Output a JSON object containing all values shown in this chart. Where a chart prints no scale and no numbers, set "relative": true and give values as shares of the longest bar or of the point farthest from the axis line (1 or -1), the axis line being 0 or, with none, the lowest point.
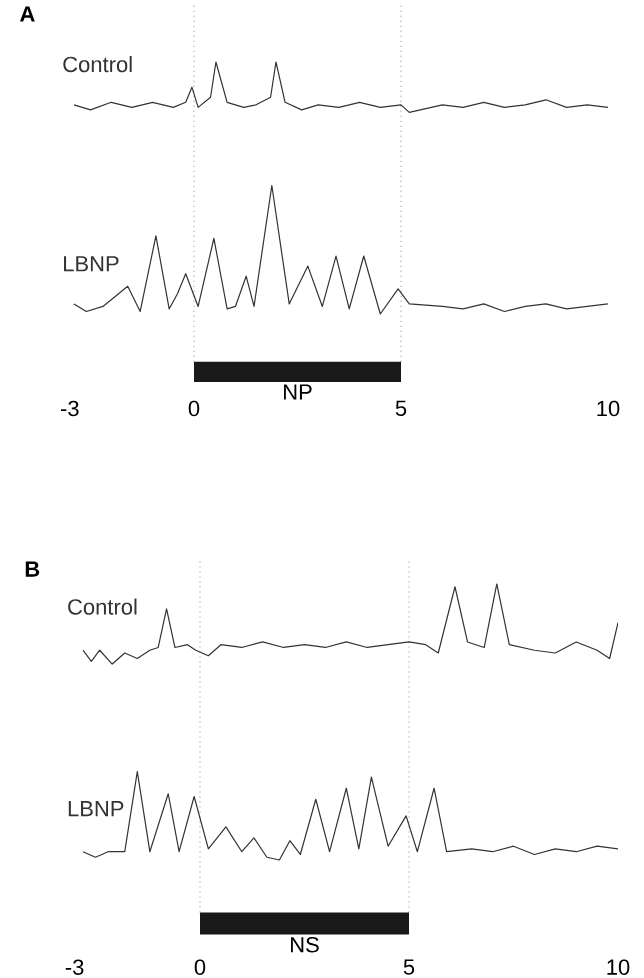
{
  "chart_data": [
    {
      "type": "line",
      "title": "A",
      "relative": true,
      "xlim": [
        -3,
        10
      ],
      "xticks": [
        -3,
        0,
        5,
        10
      ],
      "marker": "none",
      "line_style": "solid",
      "series": [
        {
          "name": "Control",
          "color": "#333333",
          "x": [
            -2.9,
            -2.5,
            -2,
            -1.5,
            -1,
            -0.5,
            -0.2,
            -0.05,
            0.1,
            0.4,
            0.53,
            0.8,
            1.2,
            1.5,
            1.85,
            1.98,
            2.2,
            2.6,
            3,
            3.5,
            4,
            4.5,
            5,
            5.2,
            6,
            6.5,
            7,
            7.5,
            8,
            8.5,
            9,
            9.5,
            10
          ],
          "values": [
            0.83,
            0.81,
            0.84,
            0.82,
            0.84,
            0.82,
            0.84,
            0.9,
            0.82,
            0.86,
            1.0,
            0.84,
            0.82,
            0.83,
            0.86,
            1.0,
            0.84,
            0.81,
            0.83,
            0.82,
            0.84,
            0.82,
            0.83,
            0.8,
            0.83,
            0.82,
            0.84,
            0.82,
            0.83,
            0.85,
            0.82,
            0.83,
            0.82
          ]
        },
        {
          "name": "LBNP",
          "color": "#333333",
          "x": [
            -2.9,
            -2.6,
            -2.2,
            -1.6,
            -1.3,
            -0.92,
            -0.6,
            -0.4,
            -0.2,
            0.1,
            0.48,
            0.8,
            1.0,
            1.26,
            1.45,
            1.88,
            2.3,
            2.75,
            3.1,
            3.43,
            3.75,
            4.1,
            4.5,
            4.93,
            5.2,
            6,
            6.5,
            7,
            7.5,
            8,
            8.5,
            9,
            9.5,
            10
          ],
          "values": [
            0.04,
            0.01,
            0.03,
            0.11,
            0.01,
            0.31,
            0.02,
            0.08,
            0.16,
            0.03,
            0.3,
            0.02,
            0.03,
            0.15,
            0.03,
            0.51,
            0.04,
            0.19,
            0.03,
            0.23,
            0.02,
            0.23,
            0.0,
            0.1,
            0.04,
            0.03,
            0.02,
            0.04,
            0.01,
            0.03,
            0.04,
            0.02,
            0.03,
            0.04
          ]
        }
      ],
      "ref_lines": [
        {
          "axis": "x",
          "value": 0,
          "color": "#888888",
          "line_style": "dotted"
        },
        {
          "axis": "x",
          "value": 5,
          "color": "#888888",
          "line_style": "dotted"
        }
      ],
      "annotations": [
        "NP"
      ]
    },
    {
      "type": "line",
      "title": "B",
      "relative": true,
      "xlim": [
        -3,
        10
      ],
      "xticks": [
        -3,
        0,
        5,
        10
      ],
      "marker": "none",
      "line_style": "solid",
      "series": [
        {
          "name": "Control",
          "color": "#333333",
          "x": [
            -2.8,
            -2.6,
            -2.4,
            -2.1,
            -1.8,
            -1.5,
            -1.2,
            -1.0,
            -0.8,
            -0.6,
            -0.3,
            -0.1,
            0.2,
            0.5,
            1,
            1.5,
            2,
            2.5,
            3,
            3.5,
            4,
            4.5,
            5,
            5.4,
            5.7,
            6.1,
            6.4,
            6.8,
            7.1,
            7.4,
            8,
            8.5,
            9,
            9.5,
            9.8,
            10
          ],
          "values": [
            0.76,
            0.72,
            0.76,
            0.71,
            0.75,
            0.73,
            0.76,
            0.77,
            0.91,
            0.77,
            0.78,
            0.76,
            0.74,
            0.78,
            0.77,
            0.79,
            0.77,
            0.78,
            0.77,
            0.79,
            0.77,
            0.78,
            0.79,
            0.78,
            0.75,
            0.99,
            0.79,
            0.77,
            1.0,
            0.78,
            0.76,
            0.75,
            0.79,
            0.76,
            0.73,
            0.86
          ]
        },
        {
          "name": "LBNP",
          "color": "#333333",
          "x": [
            -2.8,
            -2.5,
            -2.2,
            -1.8,
            -1.5,
            -1.2,
            -0.76,
            -0.5,
            -0.14,
            0.2,
            0.62,
            1.0,
            1.29,
            1.6,
            1.9,
            2.15,
            2.4,
            2.77,
            3.1,
            3.5,
            3.8,
            4.1,
            4.5,
            4.93,
            5.2,
            5.6,
            5.9,
            6.5,
            7,
            7.5,
            8,
            8.5,
            9,
            9.5,
            10
          ],
          "values": [
            0.03,
            0.01,
            0.03,
            0.03,
            0.32,
            0.03,
            0.24,
            0.03,
            0.23,
            0.04,
            0.12,
            0.03,
            0.08,
            0.01,
            0.0,
            0.07,
            0.02,
            0.22,
            0.03,
            0.26,
            0.04,
            0.3,
            0.05,
            0.16,
            0.03,
            0.26,
            0.03,
            0.04,
            0.03,
            0.05,
            0.02,
            0.04,
            0.03,
            0.05,
            0.04
          ]
        }
      ],
      "ref_lines": [
        {
          "axis": "x",
          "value": 0,
          "color": "#888888",
          "line_style": "dotted"
        },
        {
          "axis": "x",
          "value": 5,
          "color": "#888888",
          "line_style": "dotted"
        }
      ],
      "annotations": [
        "NS"
      ]
    }
  ]
}
